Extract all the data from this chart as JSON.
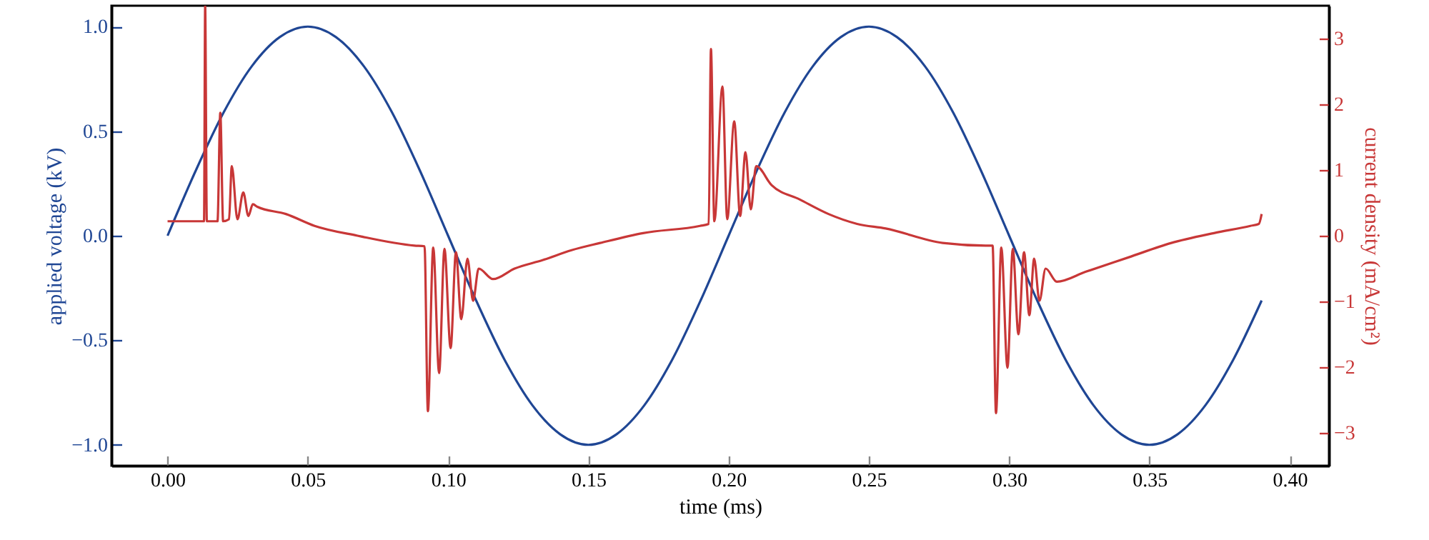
{
  "chart_data": {
    "type": "line",
    "xlabel": "time (ms)",
    "ylabel": "applied voltage (kV)",
    "y2label": "current density (mA/cm²)",
    "xlim": [
      -0.02,
      0.414
    ],
    "ylim": [
      -1.1,
      1.1
    ],
    "y2lim": [
      -3.5,
      3.5
    ],
    "xticks": [
      {
        "value": 0,
        "label": "0.00"
      },
      {
        "value": 0.05,
        "label": "0.05"
      },
      {
        "value": 0.1,
        "label": "0.10"
      },
      {
        "value": 0.15,
        "label": "0.15"
      },
      {
        "value": 0.2,
        "label": "0.20"
      },
      {
        "value": 0.25,
        "label": "0.25"
      },
      {
        "value": 0.3,
        "label": "0.30"
      },
      {
        "value": 0.35,
        "label": "0.35"
      },
      {
        "value": 0.4,
        "label": "0.40"
      }
    ],
    "yticks": [
      {
        "value": -1,
        "label": "−1.0"
      },
      {
        "value": -0.5,
        "label": "−0.5"
      },
      {
        "value": 0,
        "label": "0.0"
      },
      {
        "value": 0.5,
        "label": "0.5"
      },
      {
        "value": 1,
        "label": "1.0"
      }
    ],
    "y2ticks": [
      {
        "value": -3,
        "label": "−3"
      },
      {
        "value": -2,
        "label": "−2"
      },
      {
        "value": -1,
        "label": "−1"
      },
      0,
      1,
      2,
      3
    ],
    "grid": false,
    "marker": "none",
    "line_style": "solid",
    "series": [
      {
        "color": "#1f4694",
        "x": [
          0,
          0.01,
          0.02,
          0.03,
          0.04,
          0.05,
          0.06,
          0.07,
          0.08,
          0.09,
          0.1,
          0.11,
          0.12,
          0.13,
          0.14,
          0.15,
          0.16,
          0.17,
          0.18,
          0.19,
          0.2,
          0.21,
          0.22,
          0.23,
          0.24,
          0.25,
          0.26,
          0.27,
          0.28,
          0.29,
          0.3,
          0.31,
          0.32,
          0.33,
          0.34,
          0.35,
          0.36,
          0.37,
          0.38,
          0.39
        ],
        "values": [
          0,
          0.31,
          0.59,
          0.81,
          0.95,
          1,
          0.95,
          0.81,
          0.59,
          0.31,
          0,
          -0.31,
          -0.59,
          -0.81,
          -0.95,
          -1,
          -0.95,
          -0.81,
          -0.59,
          -0.31,
          0,
          0.31,
          0.59,
          0.81,
          0.95,
          1,
          0.95,
          0.81,
          0.59,
          0.31,
          0,
          -0.31,
          -0.59,
          -0.81,
          -0.95,
          -1,
          -0.95,
          -0.81,
          -0.59,
          -0.31
        ]
      },
      {
        "color": "#c83737",
        "axis": "y2",
        "x": [
          0,
          0.0117,
          0.013,
          0.0134,
          0.014,
          0.0178,
          0.0188,
          0.0198,
          0.0219,
          0.0229,
          0.0249,
          0.027,
          0.0288,
          0.0304,
          0.032,
          0.0422,
          0.0524,
          0.0677,
          0.088,
          0.0916,
          0.0928,
          0.0947,
          0.0968,
          0.0987,
          0.1009,
          0.1028,
          0.1047,
          0.1069,
          0.1089,
          0.1109,
          0.116,
          0.1237,
          0.1338,
          0.144,
          0.1542,
          0.1695,
          0.1898,
          0.1929,
          0.1937,
          0.1949,
          0.1978,
          0.1995,
          0.202,
          0.2041,
          0.206,
          0.2079,
          0.2098,
          0.2153,
          0.2254,
          0.2356,
          0.2458,
          0.256,
          0.2763,
          0.2916,
          0.2941,
          0.2953,
          0.2972,
          0.2994,
          0.3013,
          0.3033,
          0.3053,
          0.3072,
          0.3089,
          0.3108,
          0.313,
          0.317,
          0.3272,
          0.3425,
          0.3578,
          0.373,
          0.386,
          0.389,
          0.39
        ],
        "values": [
          0.22,
          0.22,
          0.22,
          3.5,
          0.22,
          0.22,
          1.87,
          0.22,
          0.25,
          1.06,
          0.25,
          0.66,
          0.3,
          0.48,
          0.44,
          0.33,
          0.15,
          0,
          -0.15,
          -0.16,
          -2.67,
          -0.18,
          -2.09,
          -0.2,
          -1.71,
          -0.25,
          -1.27,
          -0.35,
          -0.99,
          -0.5,
          -0.66,
          -0.5,
          -0.37,
          -0.22,
          -0.11,
          0.04,
          0.15,
          0.18,
          2.84,
          0.22,
          2.27,
          0.25,
          1.74,
          0.3,
          1.27,
          0.4,
          1.06,
          0.77,
          0.55,
          0.33,
          0.18,
          0.11,
          -0.11,
          -0.15,
          -0.15,
          -2.7,
          -0.18,
          -2.01,
          -0.2,
          -1.5,
          -0.25,
          -1.21,
          -0.35,
          -0.99,
          -0.5,
          -0.7,
          -0.55,
          -0.33,
          -0.11,
          0.04,
          0.15,
          0.18,
          0.33
        ]
      }
    ]
  }
}
